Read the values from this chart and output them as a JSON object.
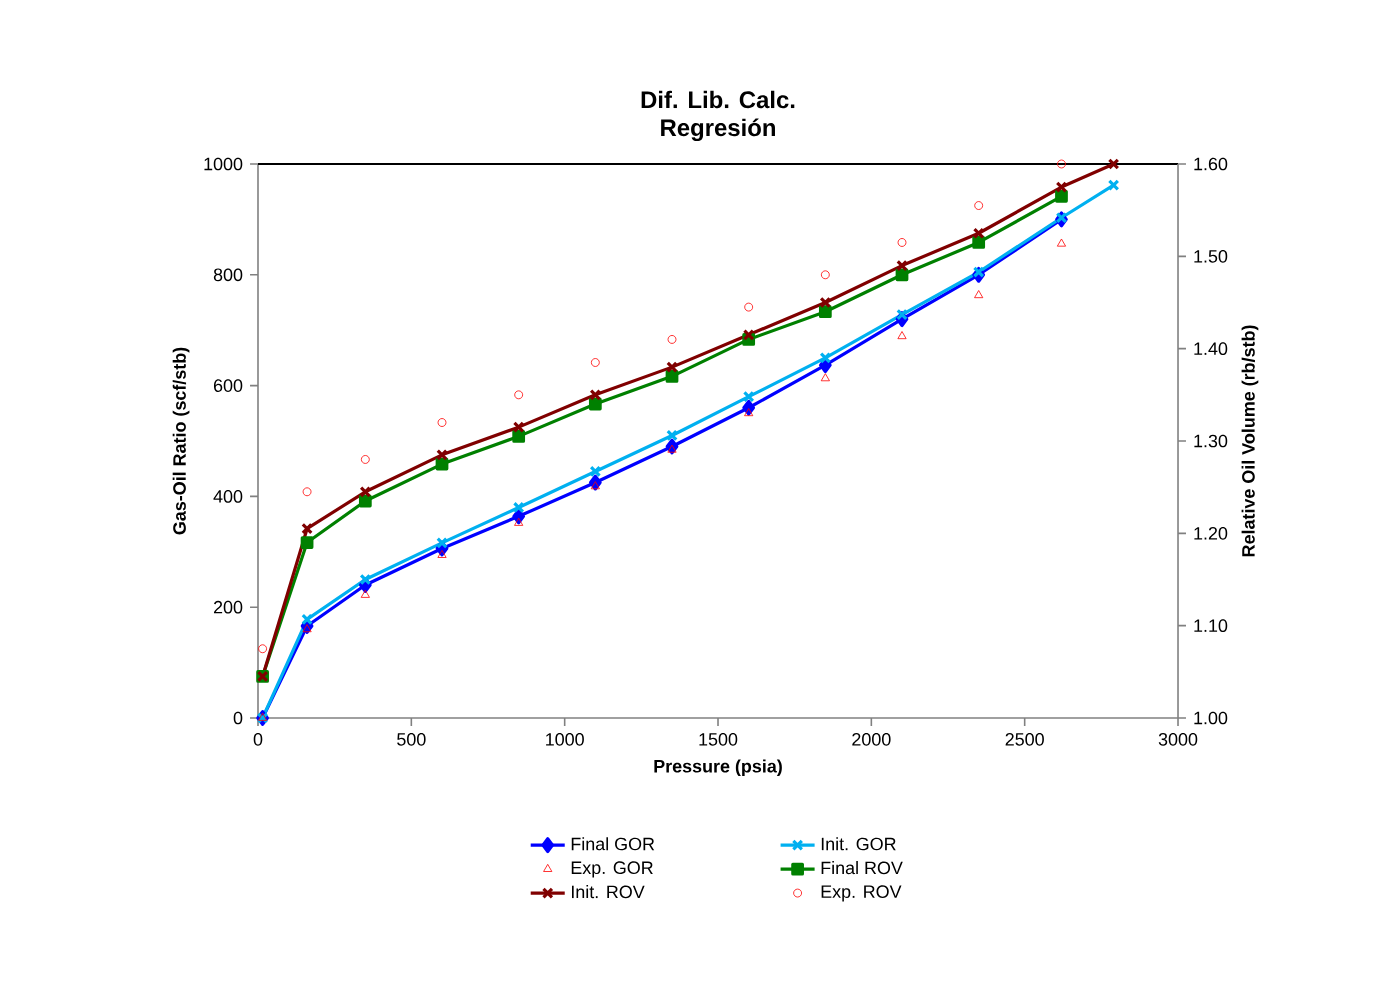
{
  "chart_data": {
    "type": "line",
    "title": "Dif. Lib. Calc.",
    "subtitle": "Regresión",
    "xlabel": "Pressure (psia)",
    "ylabel": "Gas-Oil Ratio (scf/stb)",
    "y2label": "Relative Oil Volume (rb/stb)",
    "x": [
      15,
      160,
      350,
      600,
      850,
      1100,
      1350,
      1600,
      1850,
      2100,
      2350,
      2620,
      2790
    ],
    "xlim": [
      0,
      3000
    ],
    "xticks": [
      0,
      500,
      1000,
      1500,
      2000,
      2500,
      3000
    ],
    "ylim": [
      0,
      1000
    ],
    "yticks": [
      0,
      200,
      400,
      600,
      800,
      1000
    ],
    "y2lim": [
      1.0,
      1.6
    ],
    "y2ticks": [
      {
        "value": 1.0,
        "label": "1.00"
      },
      {
        "value": 1.1,
        "label": "1.10"
      },
      {
        "value": 1.2,
        "label": "1.20"
      },
      {
        "value": 1.3,
        "label": "1.30"
      },
      {
        "value": 1.4,
        "label": "1.40"
      },
      {
        "value": 1.5,
        "label": "1.50"
      },
      {
        "value": 1.6,
        "label": "1.60"
      }
    ],
    "grid": false,
    "legend": "bottom",
    "series": [
      {
        "name": "Final GOR",
        "color": "#0000ff",
        "marker": "diamond",
        "values": [
          0,
          166,
          240,
          306,
          364,
          425,
          490,
          560,
          637,
          720,
          800,
          900,
          null
        ]
      },
      {
        "name": "Init. GOR",
        "color": "#00b0f0",
        "marker": "cross",
        "values": [
          0,
          178,
          250,
          316,
          380,
          445,
          510,
          580,
          650,
          728,
          805,
          903,
          962
        ]
      },
      {
        "name": "Exp. GOR",
        "type": "scatter",
        "color": "#ff0000",
        "marker": "triangle",
        "values": [
          0,
          160,
          222,
          294,
          352,
          418,
          484,
          550,
          613,
          689,
          763,
          856,
          null
        ]
      },
      {
        "name": "Final ROV",
        "color": "#008000",
        "marker": "square",
        "axis": "y2",
        "values": [
          1.045,
          1.19,
          1.235,
          1.275,
          1.305,
          1.34,
          1.37,
          1.41,
          1.44,
          1.48,
          1.515,
          1.565,
          null
        ]
      },
      {
        "name": "Init. ROV",
        "color": "#800000",
        "marker": "cross",
        "axis": "y2",
        "values": [
          1.045,
          1.205,
          1.245,
          1.285,
          1.315,
          1.35,
          1.38,
          1.415,
          1.45,
          1.49,
          1.525,
          1.575,
          1.6
        ]
      },
      {
        "name": "Exp. ROV",
        "type": "scatter",
        "color": "#ff0000",
        "marker": "circle",
        "axis": "y2",
        "values": [
          1.075,
          1.245,
          1.28,
          1.32,
          1.35,
          1.385,
          1.41,
          1.445,
          1.48,
          1.515,
          1.555,
          1.6,
          null
        ]
      }
    ]
  }
}
